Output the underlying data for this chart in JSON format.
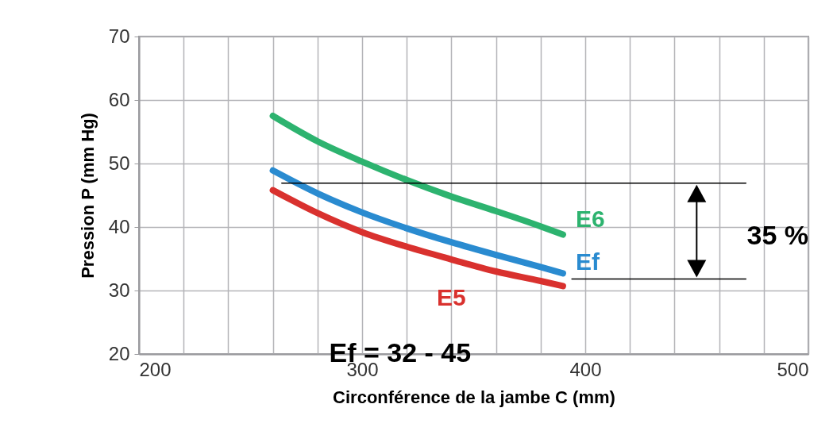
{
  "chart_data": {
    "type": "line",
    "xlabel": "Circonférence de la jambe    C   (mm)",
    "ylabel": "Pression   P  (mm Hg)",
    "x": [
      260,
      280,
      300,
      320,
      340,
      360,
      380,
      390
    ],
    "series": [
      {
        "name": "E6",
        "color": "#2db36f",
        "values": [
          57.5,
          53.5,
          50.3,
          47.4,
          44.8,
          42.5,
          40.1,
          38.8
        ]
      },
      {
        "name": "Ef",
        "color": "#2a8bd0",
        "values": [
          48.9,
          45.3,
          42.3,
          39.8,
          37.6,
          35.6,
          33.7,
          32.7
        ]
      },
      {
        "name": "E5",
        "color": "#d9312e",
        "values": [
          45.8,
          42.2,
          39.2,
          36.9,
          34.9,
          33.0,
          31.5,
          30.7
        ]
      },
      {
        "type": "line",
        "color": "#000000",
        "x": [
          264,
          472
        ],
        "values": [
          46.9,
          46.9
        ]
      },
      {
        "type": "line",
        "color": "#000000",
        "x": [
          394,
          472
        ],
        "values": [
          31.8,
          31.8
        ]
      }
    ],
    "annotations": [
      "Ef = 32 - 45",
      "35 %"
    ],
    "xlim": [
      200,
      500
    ],
    "xticks": [
      200,
      {
        "value": 220,
        "label": null
      },
      {
        "value": 240,
        "label": null
      },
      {
        "value": 260,
        "label": null
      },
      {
        "value": 280,
        "label": null
      },
      300,
      {
        "value": 320,
        "label": null
      },
      {
        "value": 340,
        "label": null
      },
      {
        "value": 360,
        "label": null
      },
      {
        "value": 380,
        "label": null
      },
      400,
      {
        "value": 420,
        "label": null
      },
      {
        "value": 440,
        "label": null
      },
      {
        "value": 460,
        "label": null
      },
      {
        "value": 480,
        "label": null
      },
      500
    ],
    "ylim": [
      20,
      70
    ],
    "yticks": [
      20,
      30,
      40,
      50,
      60,
      70
    ],
    "grid": true,
    "line_style": "solid"
  }
}
